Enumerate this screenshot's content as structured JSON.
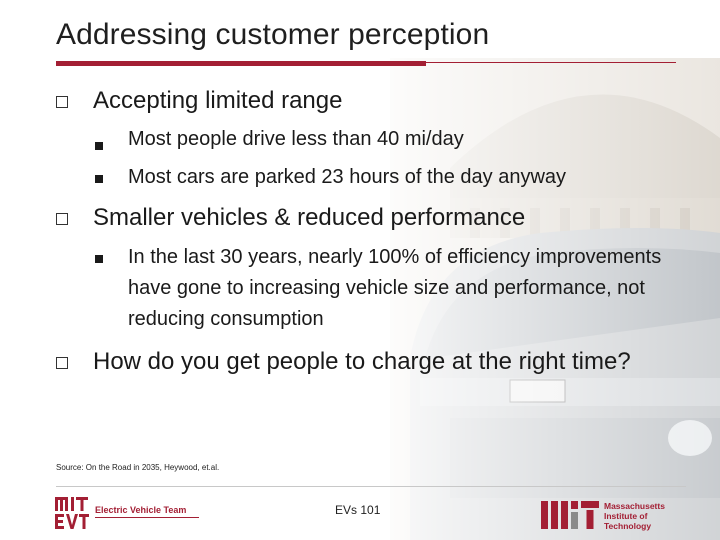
{
  "slide": {
    "title": "Addressing customer perception",
    "bullets": [
      {
        "text": "Accepting limited range",
        "sub": [
          "Most people drive less than 40 mi/day",
          "Most cars are parked 23 hours of the day anyway"
        ]
      },
      {
        "text": "Smaller vehicles & reduced performance",
        "sub": [
          "In the last 30 years, nearly 100% of efficiency improvements have gone to increasing vehicle size and performance, not reducing consumption"
        ]
      },
      {
        "text": "How do you get people to charge at the right time?",
        "sub": []
      }
    ]
  },
  "source": "Source: On the Road in 2035, Heywood, et.al.",
  "footer": {
    "center": "EVs 101",
    "left_logo": "MIT EVT",
    "left_team": "Electric Vehicle Team",
    "right_logo_mark": "MIT",
    "right_institute": [
      "Massachusetts",
      "Institute of",
      "Technology"
    ]
  },
  "colors": {
    "accent": "#a31f34",
    "text": "#1a1a1a"
  }
}
